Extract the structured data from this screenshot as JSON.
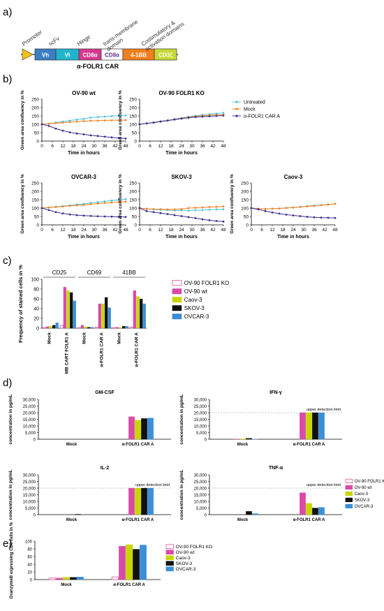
{
  "panel_labels": {
    "a": "a)",
    "b": "b)",
    "c": "c)",
    "d": "d)",
    "e": "e)"
  },
  "construct": {
    "segments": [
      {
        "label": "Vh",
        "color": "#3b7fc4"
      },
      {
        "label": "Vl",
        "color": "#22b4cc"
      },
      {
        "label": "CD8α",
        "color": "#d6398f"
      },
      {
        "label": "CD8α",
        "color": "#ffffff"
      },
      {
        "label": "4-1BB",
        "color": "#f07f1d"
      },
      {
        "label": "CD3ζ",
        "color": "#c7d936"
      }
    ],
    "annotations": [
      "Promoter",
      "scFv",
      "Hinge",
      "trans-membrane domain",
      "Costimulatory & activation domains"
    ],
    "name": "α-FOLR1 CAR"
  },
  "colors": {
    "untreated": "#4fc3d9",
    "mock": "#f58220",
    "car": "#3d2f8f",
    "ov90ko": "#e4519b",
    "ov90wt": "#d94aa9",
    "caov3": "#c7d600",
    "skov3": "#111111",
    "ovcar3": "#3b8fd6"
  },
  "chart_data": [
    {
      "id": "b-ov90wt",
      "type": "line",
      "title": "OV-90 wt",
      "xlabel": "Time in hours",
      "ylabel": "Green area confluency in %",
      "xticks": [
        0,
        6,
        12,
        18,
        24,
        30,
        36,
        42,
        48
      ],
      "yticks": [
        0,
        50,
        100,
        150,
        200,
        250
      ],
      "ylim": [
        0,
        250
      ],
      "xlim": [
        0,
        48
      ],
      "x": [
        0,
        4,
        8,
        12,
        16,
        20,
        24,
        28,
        32,
        36,
        40,
        44,
        48
      ],
      "series": [
        {
          "name": "Untreated",
          "values": [
            100,
            104,
            110,
            116,
            122,
            128,
            133,
            140,
            143,
            146,
            149,
            151,
            153
          ]
        },
        {
          "name": "Mock",
          "values": [
            100,
            103,
            107,
            110,
            113,
            116,
            118,
            121,
            122,
            123,
            124,
            124,
            125
          ]
        },
        {
          "name": "α-FOLR1 CAR A",
          "values": [
            100,
            90,
            74,
            62,
            52,
            45,
            40,
            34,
            30,
            26,
            22,
            18,
            15
          ]
        }
      ]
    },
    {
      "id": "b-ov90ko",
      "type": "line",
      "title": "OV-90 FOLR1 KO",
      "xlabel": "Time in hours",
      "ylabel": "Green area confluency in %",
      "xticks": [
        0,
        6,
        12,
        18,
        24,
        30,
        36,
        42,
        48
      ],
      "yticks": [
        0,
        50,
        100,
        150,
        200,
        250
      ],
      "ylim": [
        0,
        250
      ],
      "xlim": [
        0,
        48
      ],
      "x": [
        0,
        4,
        8,
        12,
        16,
        20,
        24,
        28,
        32,
        36,
        40,
        44,
        48
      ],
      "series": [
        {
          "name": "Untreated",
          "values": [
            100,
            106,
            112,
            118,
            124,
            131,
            138,
            145,
            151,
            156,
            160,
            164,
            168
          ]
        },
        {
          "name": "Mock",
          "values": [
            100,
            105,
            111,
            117,
            123,
            129,
            136,
            142,
            147,
            151,
            154,
            156,
            157
          ]
        },
        {
          "name": "α-FOLR1 CAR A",
          "values": [
            100,
            105,
            110,
            116,
            122,
            128,
            134,
            139,
            143,
            146,
            148,
            150,
            152
          ]
        }
      ]
    },
    {
      "id": "b-ovcar3",
      "type": "line",
      "title": "OVCAR-3",
      "xlabel": "Time in hours",
      "ylabel": "Green area confluency in %",
      "xticks": [
        0,
        6,
        12,
        18,
        24,
        30,
        36,
        42,
        48
      ],
      "yticks": [
        0,
        50,
        100,
        150,
        200,
        250
      ],
      "ylim": [
        0,
        250
      ],
      "xlim": [
        0,
        48
      ],
      "x": [
        0,
        4,
        8,
        12,
        16,
        20,
        24,
        28,
        32,
        36,
        40,
        44,
        48
      ],
      "series": [
        {
          "name": "Untreated",
          "values": [
            100,
            104,
            108,
            112,
            116,
            121,
            125,
            131,
            136,
            140,
            145,
            149,
            153
          ]
        },
        {
          "name": "Mock",
          "values": [
            100,
            103,
            106,
            110,
            113,
            116,
            119,
            123,
            127,
            130,
            133,
            136,
            138
          ]
        },
        {
          "name": "α-FOLR1 CAR A",
          "values": [
            100,
            88,
            76,
            68,
            62,
            58,
            55,
            53,
            51,
            50,
            49,
            48,
            47
          ]
        }
      ]
    },
    {
      "id": "b-skov3",
      "type": "line",
      "title": "SKOV-3",
      "xlabel": "Time in hours",
      "ylabel": "Green area confluency in %",
      "xticks": [
        0,
        6,
        12,
        18,
        24,
        30,
        36,
        42,
        48
      ],
      "yticks": [
        0,
        50,
        100,
        150,
        200,
        250
      ],
      "ylim": [
        0,
        250
      ],
      "xlim": [
        0,
        48
      ],
      "x": [
        0,
        4,
        8,
        12,
        16,
        20,
        24,
        28,
        32,
        36,
        40,
        44,
        48
      ],
      "series": [
        {
          "name": "Untreated",
          "values": [
            100,
            95,
            92,
            90,
            88,
            86,
            86,
            85,
            87,
            88,
            90,
            92,
            93
          ]
        },
        {
          "name": "Mock",
          "values": [
            100,
            96,
            94,
            93,
            92,
            92,
            94,
            100,
            102,
            104,
            106,
            108,
            110
          ]
        },
        {
          "name": "α-FOLR1 CAR A",
          "values": [
            100,
            82,
            76,
            70,
            64,
            58,
            52,
            46,
            40,
            33,
            27,
            23,
            20
          ]
        }
      ]
    },
    {
      "id": "b-caov3",
      "type": "line",
      "title": "Caov-3",
      "xlabel": "Time in hours",
      "ylabel": "Green area confluency in %",
      "xticks": [
        0,
        6,
        12,
        18,
        24,
        30,
        36,
        42,
        48
      ],
      "yticks": [
        0,
        50,
        100,
        150,
        200,
        250
      ],
      "ylim": [
        0,
        250
      ],
      "xlim": [
        0,
        48
      ],
      "x": [
        0,
        4,
        8,
        12,
        16,
        20,
        24,
        28,
        32,
        36,
        40,
        44,
        48
      ],
      "series": [
        {
          "name": "Untreated",
          "values": [
            100,
            97,
            95,
            96,
            98,
            101,
            104,
            108,
            112,
            115,
            118,
            122,
            126
          ]
        },
        {
          "name": "Mock",
          "values": [
            100,
            97,
            95,
            96,
            98,
            100,
            103,
            107,
            110,
            113,
            117,
            121,
            125
          ]
        },
        {
          "name": "α-FOLR1 CAR A",
          "values": [
            100,
            92,
            82,
            74,
            67,
            61,
            56,
            52,
            48,
            45,
            43,
            42,
            41
          ]
        }
      ]
    },
    {
      "id": "c-markers",
      "type": "bar",
      "ylabel": "Frequency of stained cells in %",
      "yticks": [
        0,
        20,
        40,
        60,
        80,
        100
      ],
      "ylim": [
        0,
        100
      ],
      "groups": [
        "CD25",
        "CD69",
        "41BB"
      ],
      "categories": [
        "Mock",
        "MB CART FOLR1 A",
        "Mock",
        "α-FOLR1 CAR A",
        "Mock",
        "α-FOLR1 CAR A"
      ],
      "series": [
        {
          "name": "OV-90 FOLR1 KO",
          "values": [
            1,
            6,
            1,
            2,
            1,
            2
          ]
        },
        {
          "name": "OV-90 wt",
          "values": [
            3,
            84,
            6,
            50,
            2,
            77
          ]
        },
        {
          "name": "Caov-3",
          "values": [
            4,
            77,
            3,
            50,
            1,
            65
          ]
        },
        {
          "name": "SKOV-3",
          "values": [
            6,
            73,
            2,
            63,
            4,
            60
          ]
        },
        {
          "name": "OVCAR-3",
          "values": [
            11,
            56,
            2,
            42,
            4,
            50
          ]
        }
      ]
    },
    {
      "id": "d-gmcsf",
      "type": "bar",
      "title": "GM-CSF",
      "ylabel": "concentration in pg/mL",
      "yticks": [
        0,
        5000,
        10000,
        15000,
        20000,
        25000,
        30000
      ],
      "ylim": [
        0,
        30000
      ],
      "categories": [
        "Mock",
        "α-FOLR1 CAR A"
      ],
      "series": [
        {
          "name": "OV-90 FOLR1 KO",
          "values": [
            0,
            0
          ]
        },
        {
          "name": "OV-90 wt",
          "values": [
            0,
            17000
          ]
        },
        {
          "name": "Caov-3",
          "values": [
            0,
            14300
          ]
        },
        {
          "name": "SKOV-3",
          "values": [
            0,
            15600
          ]
        },
        {
          "name": "OVCAR-3",
          "values": [
            0,
            16000
          ]
        }
      ]
    },
    {
      "id": "d-ifng",
      "type": "bar",
      "title": "IFN-γ",
      "ylabel": "concentration in pg/mL",
      "annotation": "upper detection limit",
      "limit": 20000,
      "yticks": [
        0,
        5000,
        10000,
        15000,
        20000,
        25000,
        30000
      ],
      "ylim": [
        0,
        30000
      ],
      "categories": [
        "Mock",
        "α-FOLR1 CAR A"
      ],
      "series": [
        {
          "name": "OV-90 FOLR1 KO",
          "values": [
            0,
            0
          ]
        },
        {
          "name": "OV-90 wt",
          "values": [
            100,
            20000
          ]
        },
        {
          "name": "Caov-3",
          "values": [
            300,
            20000
          ]
        },
        {
          "name": "SKOV-3",
          "values": [
            700,
            20000
          ]
        },
        {
          "name": "OVCAR-3",
          "values": [
            150,
            20000
          ]
        }
      ]
    },
    {
      "id": "d-il2",
      "type": "bar",
      "title": "IL-2",
      "ylabel": "concentration in pg/mL",
      "annotation": "upper detection limit",
      "limit": 20000,
      "yticks": [
        0,
        5000,
        10000,
        15000,
        20000,
        25000,
        30000
      ],
      "ylim": [
        0,
        30000
      ],
      "categories": [
        "Mock",
        "α-FOLR1 CAR A"
      ],
      "series": [
        {
          "name": "OV-90 FOLR1 KO",
          "values": [
            0,
            0
          ]
        },
        {
          "name": "OV-90 wt",
          "values": [
            0,
            20000
          ]
        },
        {
          "name": "Caov-3",
          "values": [
            0,
            20000
          ]
        },
        {
          "name": "SKOV-3",
          "values": [
            300,
            20000
          ]
        },
        {
          "name": "OVCAR-3",
          "values": [
            0,
            20000
          ]
        }
      ]
    },
    {
      "id": "d-tnfa",
      "type": "bar",
      "title": "TNF-α",
      "ylabel": "concentration in pg/mL",
      "annotation": "upper detection limit",
      "limit": 20000,
      "yticks": [
        0,
        5000,
        10000,
        15000,
        20000,
        25000,
        30000
      ],
      "ylim": [
        0,
        30000
      ],
      "categories": [
        "Mock",
        "α-FOLR1 CAR A"
      ],
      "series": [
        {
          "name": "OV-90 FOLR1 KO",
          "values": [
            0,
            0
          ]
        },
        {
          "name": "OV-90 wt",
          "values": [
            0,
            16500
          ]
        },
        {
          "name": "Caov-3",
          "values": [
            0,
            8500
          ]
        },
        {
          "name": "SKOV-3",
          "values": [
            2500,
            5000
          ]
        },
        {
          "name": "OVCAR-3",
          "values": [
            800,
            5500
          ]
        }
      ]
    },
    {
      "id": "e-granzyme",
      "type": "bar",
      "ylabel": "GranzymeB expressing CD8 cells in %",
      "yticks": [
        0,
        20,
        40,
        60,
        80,
        100
      ],
      "ylim": [
        0,
        100
      ],
      "categories": [
        "Mock",
        "α-FOLR1 CAR A"
      ],
      "series": [
        {
          "name": "OV-90 FOLR1 KO",
          "values": [
            4,
            7
          ]
        },
        {
          "name": "OV-90 wt",
          "values": [
            4,
            87
          ]
        },
        {
          "name": "Caov-3",
          "values": [
            6,
            91
          ]
        },
        {
          "name": "SKOV-3",
          "values": [
            6,
            79
          ]
        },
        {
          "name": "OVCAR-3",
          "values": [
            7,
            90
          ]
        }
      ]
    }
  ],
  "legend_b": [
    "Untreated",
    "Mock",
    "α-FOLR1 CAR A"
  ],
  "legend_bars": [
    "OV-90 FOLR1 KO",
    "OV-90 wt",
    "Caov-3",
    "SKOV-3",
    "OVCAR-3"
  ]
}
